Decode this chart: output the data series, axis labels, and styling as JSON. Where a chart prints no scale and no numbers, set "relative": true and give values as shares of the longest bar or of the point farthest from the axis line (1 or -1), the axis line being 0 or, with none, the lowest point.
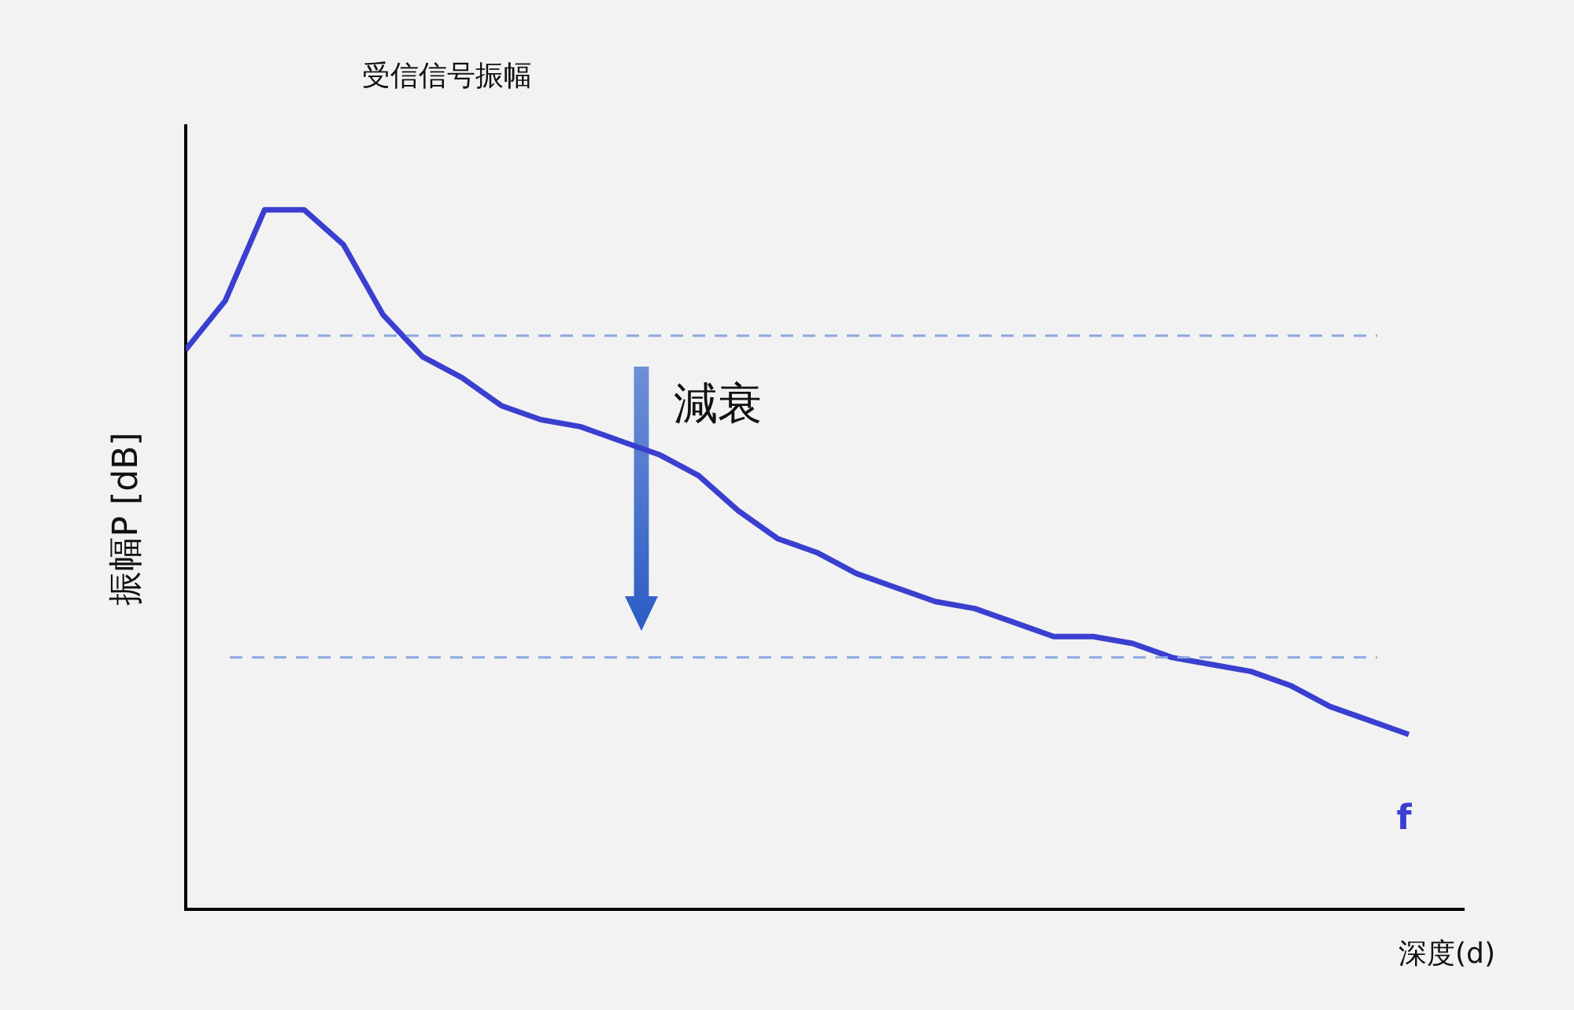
{
  "chart_data": {
    "type": "line",
    "title": "受信信号振幅",
    "xlabel": "深度(d)",
    "ylabel": "振幅P [dB]",
    "relative": true,
    "tick_labels": false,
    "grid": false,
    "legend": false,
    "marker": "none",
    "line_style": "solid",
    "categories": [
      null,
      null,
      null,
      null,
      null,
      null,
      null,
      null,
      null,
      null,
      null,
      null,
      null,
      null,
      null,
      null,
      null,
      null,
      null,
      null,
      null,
      null,
      null,
      null,
      null,
      null,
      null,
      null,
      null,
      null,
      null,
      null
    ],
    "series": [
      {
        "name": "f",
        "color": "#3a3fd0",
        "values": [
          0.8,
          0.87,
          1,
          1,
          0.95,
          0.85,
          0.79,
          0.76,
          0.72,
          0.7,
          0.69,
          0.67,
          0.65,
          0.62,
          0.57,
          0.53,
          0.51,
          0.48,
          0.46,
          0.44,
          0.43,
          0.41,
          0.39,
          0.39,
          0.38,
          0.36,
          0.35,
          0.34,
          0.32,
          0.29,
          0.27,
          0.25
        ]
      }
    ],
    "ref_lines": [
      {
        "axis": "y",
        "value": 0.82,
        "color": "#8fa8e0",
        "line_style": "dashed"
      },
      {
        "axis": "y",
        "value": 0.36,
        "color": "#8fa8e0",
        "line_style": "dashed"
      }
    ],
    "annotations": [
      "減衰"
    ]
  }
}
